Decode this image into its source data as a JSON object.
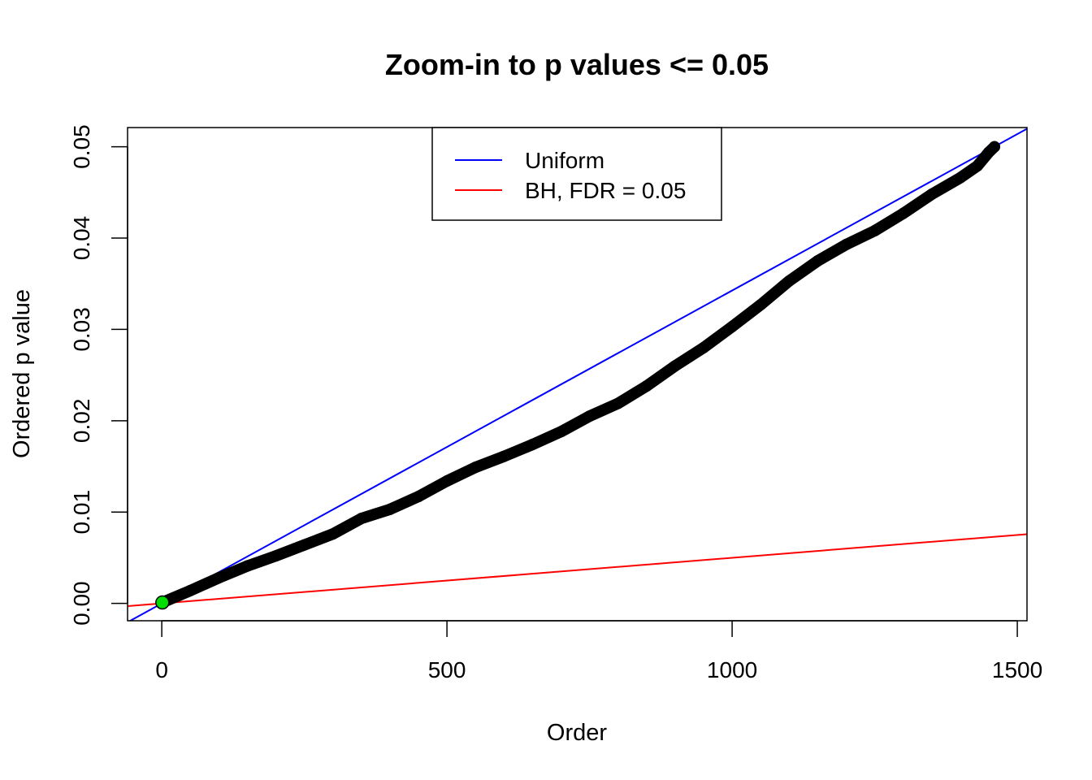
{
  "chart_data": {
    "type": "scatter",
    "title": "Zoom-in to p values <= 0.05",
    "xlabel": "Order",
    "ylabel": "Ordered p value",
    "xlim": [
      -60,
      1517
    ],
    "ylim": [
      -0.0019,
      0.0521
    ],
    "x_ticks": [
      0,
      500,
      1000,
      1500
    ],
    "x_tick_labels": [
      "0",
      "500",
      "1000",
      "1500"
    ],
    "y_ticks": [
      0,
      0.01,
      0.02,
      0.03,
      0.04,
      0.05
    ],
    "y_tick_labels": [
      "0.00",
      "0.01",
      "0.02",
      "0.03",
      "0.04",
      "0.05"
    ],
    "grid": false,
    "legend_position": "top-center",
    "series": [
      {
        "kind": "points",
        "color": "#000000",
        "x": [
          1,
          50,
          100,
          150,
          200,
          250,
          300,
          350,
          400,
          450,
          500,
          550,
          600,
          650,
          700,
          750,
          800,
          850,
          900,
          950,
          1000,
          1050,
          1100,
          1150,
          1200,
          1250,
          1300,
          1350,
          1400,
          1430,
          1450,
          1460
        ],
        "y": [
          0.0001,
          0.0014,
          0.0028,
          0.0041,
          0.0052,
          0.0064,
          0.0076,
          0.0093,
          0.0103,
          0.0117,
          0.0134,
          0.0149,
          0.0161,
          0.0174,
          0.0188,
          0.0205,
          0.0219,
          0.0238,
          0.026,
          0.028,
          0.0303,
          0.0327,
          0.0353,
          0.0375,
          0.0393,
          0.0408,
          0.0427,
          0.0448,
          0.0466,
          0.0479,
          0.0494,
          0.05
        ]
      },
      {
        "kind": "line",
        "name": "Uniform",
        "color": "#0000ff",
        "x": [
          -60,
          1517
        ],
        "y": [
          -0.00206,
          0.05197
        ]
      },
      {
        "kind": "line",
        "name": "BH, FDR = 0.05",
        "color": "#ff0000",
        "x": [
          -60,
          1517
        ],
        "y": [
          -0.0003,
          0.00758
        ]
      },
      {
        "kind": "highlight",
        "color": "#00dd00",
        "x": [
          1
        ],
        "y": [
          0.0001
        ]
      }
    ],
    "legend": [
      {
        "label": "Uniform",
        "color": "#0000ff"
      },
      {
        "label": "BH, FDR = 0.05",
        "color": "#ff0000"
      }
    ]
  }
}
